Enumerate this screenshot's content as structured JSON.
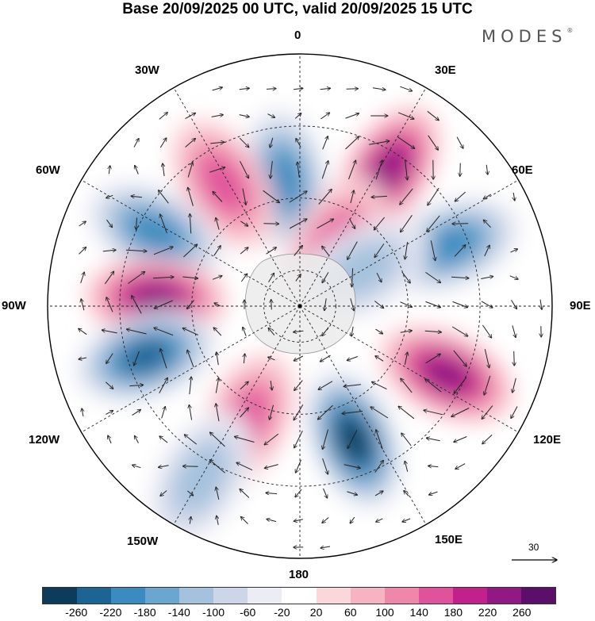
{
  "title": "Base 20/09/2025 00 UTC, valid 20/09/2025 15 UTC",
  "brand": "MODES",
  "brand_mark": "®",
  "longitude_labels": {
    "top": "0",
    "top_right": "30E",
    "right_upper": "60E",
    "right": "90E",
    "right_lower": "120E",
    "bottom_right": "150E",
    "bottom": "180",
    "bottom_left": "150W",
    "left_lower": "120W",
    "left": "90W",
    "left_upper": "60W",
    "top_left": "30W"
  },
  "vector_reference": {
    "value": "30",
    "icon": "arrow-right-icon"
  },
  "colorbar": {
    "colors": [
      "#0c3b5c",
      "#1b6494",
      "#3a8bbf",
      "#6aa6cf",
      "#a4c1dd",
      "#cdd6e8",
      "#ececf4",
      "#ffffff",
      "#fbd7dc",
      "#f6b4c2",
      "#ef87aa",
      "#e0529b",
      "#c2208a",
      "#921883",
      "#5b0f6b"
    ],
    "labels": [
      "-260",
      "-220",
      "-180",
      "-140",
      "-100",
      "-60",
      "-20",
      "20",
      "60",
      "100",
      "140",
      "180",
      "220",
      "260"
    ]
  },
  "anomaly_centers": [
    {
      "sign": "negative",
      "lat": -55,
      "lon": -7,
      "strength": 180
    },
    {
      "sign": "positive",
      "lat": -50,
      "lon": -32,
      "strength": 140
    },
    {
      "sign": "negative",
      "lat": -45,
      "lon": -63,
      "strength": 200
    },
    {
      "sign": "positive",
      "lat": -50,
      "lon": -87,
      "strength": 250
    },
    {
      "sign": "negative",
      "lat": -45,
      "lon": -108,
      "strength": 230
    },
    {
      "sign": "positive",
      "lat": -55,
      "lon": -155,
      "strength": 150
    },
    {
      "sign": "negative",
      "lat": -35,
      "lon": -150,
      "strength": 100
    },
    {
      "sign": "negative",
      "lat": -50,
      "lon": 158,
      "strength": 260
    },
    {
      "sign": "positive",
      "lat": -45,
      "lon": 115,
      "strength": 240
    },
    {
      "sign": "negative",
      "lat": -45,
      "lon": 68,
      "strength": 200
    },
    {
      "sign": "positive",
      "lat": -45,
      "lon": 33,
      "strength": 250
    },
    {
      "sign": "positive",
      "lat": -70,
      "lon": 30,
      "strength": 160
    },
    {
      "sign": "negative",
      "lat": -70,
      "lon": 60,
      "strength": 110
    }
  ]
}
